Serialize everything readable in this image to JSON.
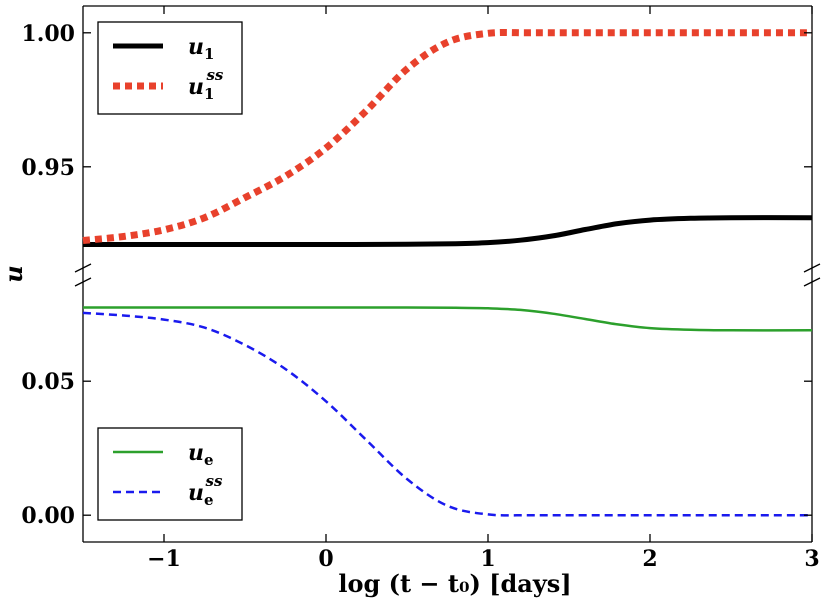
{
  "chart_data": {
    "type": "line",
    "xlabel": "log (t − t₀) [days]",
    "ylabel": "u",
    "xlim": [
      -1.5,
      3
    ],
    "x_ticks": [
      -1,
      0,
      1,
      2,
      3
    ],
    "x_tick_labels": [
      "−1",
      "0",
      "1",
      "2",
      "3"
    ],
    "panels": [
      {
        "name": "upper",
        "ylim": [
          0.91,
          1.01
        ],
        "y_ticks": [
          0.95,
          1.0
        ],
        "y_tick_labels": [
          "0.95",
          "1.00"
        ],
        "legend_position": "top-left",
        "series": [
          {
            "name": "u1",
            "label_base": "u",
            "label_sub": "1",
            "label_sup": "",
            "color": "#000000",
            "style": "solid",
            "x": [
              -1.5,
              -1.0,
              -0.5,
              0.0,
              0.5,
              0.8,
              1.0,
              1.2,
              1.4,
              1.6,
              1.8,
              2.0,
              2.25,
              2.5,
              3.0
            ],
            "values": [
              0.921,
              0.921,
              0.921,
              0.921,
              0.9211,
              0.9213,
              0.9217,
              0.9226,
              0.9242,
              0.9266,
              0.9288,
              0.9301,
              0.9308,
              0.931,
              0.931
            ]
          },
          {
            "name": "u1ss",
            "label_base": "u",
            "label_sub": "1",
            "label_sup": "ss",
            "color": "#e8412c",
            "style": "dotted",
            "x": [
              -1.5,
              -1.25,
              -1.0,
              -0.75,
              -0.5,
              -0.25,
              0.0,
              0.25,
              0.5,
              0.75,
              1.0,
              1.25,
              1.5,
              2.0,
              3.0
            ],
            "values": [
              0.9225,
              0.924,
              0.9265,
              0.931,
              0.9385,
              0.9465,
              0.957,
              0.971,
              0.9865,
              0.9965,
              0.9998,
              1.0,
              1.0,
              1.0,
              1.0
            ]
          }
        ]
      },
      {
        "name": "lower",
        "ylim": [
          -0.01,
          0.09
        ],
        "y_ticks": [
          0.0,
          0.05
        ],
        "y_tick_labels": [
          "0.00",
          "0.05"
        ],
        "legend_position": "bottom-left",
        "series": [
          {
            "name": "ue",
            "label_base": "u",
            "label_sub": "e",
            "label_sup": "",
            "color": "#2ca02c",
            "style": "solid",
            "x": [
              -1.5,
              -1.0,
              -0.5,
              0.0,
              0.5,
              0.8,
              1.0,
              1.2,
              1.4,
              1.6,
              1.8,
              2.0,
              2.25,
              2.5,
              3.0
            ],
            "values": [
              0.0775,
              0.0775,
              0.0775,
              0.0775,
              0.0775,
              0.0774,
              0.0772,
              0.0766,
              0.0752,
              0.0732,
              0.0712,
              0.0698,
              0.0692,
              0.069,
              0.069
            ]
          },
          {
            "name": "uess",
            "label_base": "u",
            "label_sub": "e",
            "label_sup": "ss",
            "color": "#1a1aee",
            "style": "dashed",
            "x": [
              -1.5,
              -1.25,
              -1.0,
              -0.75,
              -0.5,
              -0.25,
              0.0,
              0.25,
              0.5,
              0.75,
              1.0,
              1.25,
              1.5,
              2.0,
              3.0
            ],
            "values": [
              0.0755,
              0.0745,
              0.073,
              0.07,
              0.0635,
              0.0545,
              0.0425,
              0.028,
              0.0135,
              0.0035,
              0.0003,
              0.0,
              0.0,
              0.0,
              0.0
            ]
          }
        ]
      }
    ]
  }
}
